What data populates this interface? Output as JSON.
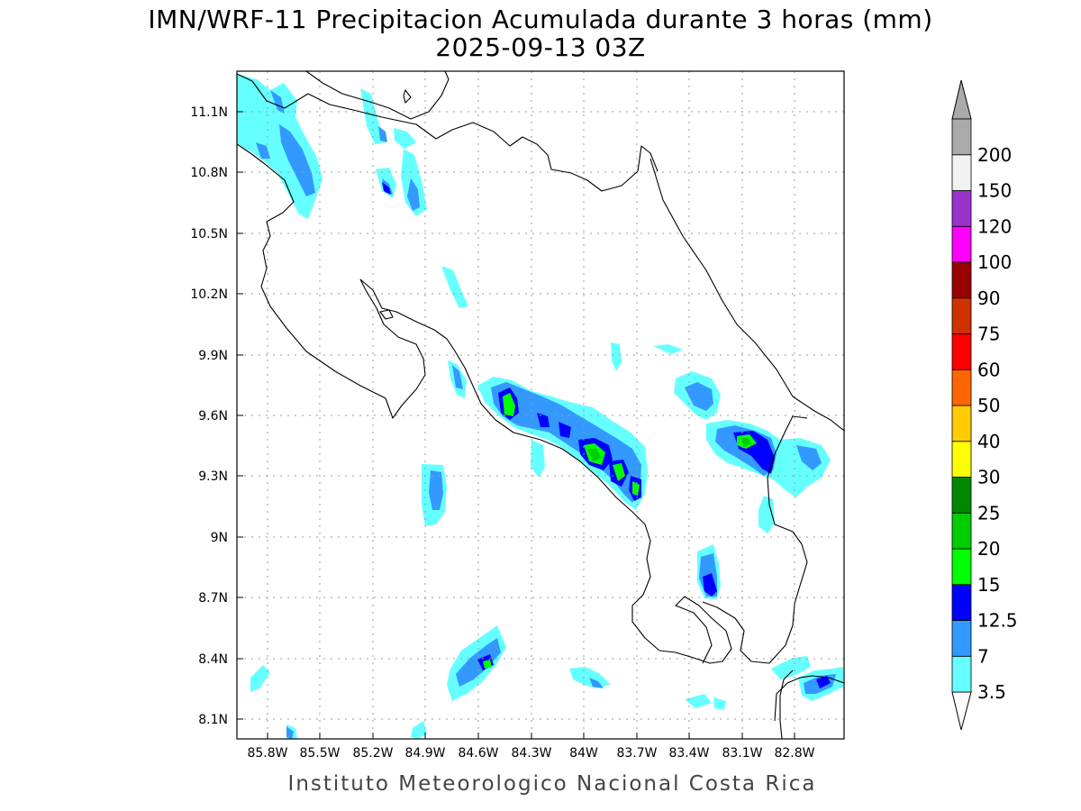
{
  "title": {
    "line1": "IMN/WRF-11 Precipitacion Acumulada durante 3 horas (mm)",
    "line2": "2025-09-13 03Z"
  },
  "footer": "Instituto Meteorologico Nacional Costa Rica",
  "axes": {
    "x_ticks": [
      "85.8W",
      "85.5W",
      "85.2W",
      "84.9W",
      "84.6W",
      "84.3W",
      "84W",
      "83.7W",
      "83.4W",
      "83.1W",
      "82.8W"
    ],
    "y_ticks": [
      "11.1N",
      "10.8N",
      "10.5N",
      "10.2N",
      "9.9N",
      "9.6N",
      "9.3N",
      "9N",
      "8.7N",
      "8.4N",
      "8.1N"
    ]
  },
  "legend": {
    "levels": [
      {
        "label": "3.5",
        "color": "#66ffff"
      },
      {
        "label": "7",
        "color": "#3399ff"
      },
      {
        "label": "12.5",
        "color": "#0000ff"
      },
      {
        "label": "15",
        "color": "#00ff00"
      },
      {
        "label": "20",
        "color": "#00cc00"
      },
      {
        "label": "25",
        "color": "#008800"
      },
      {
        "label": "30",
        "color": "#ffff00"
      },
      {
        "label": "40",
        "color": "#ffcc00"
      },
      {
        "label": "50",
        "color": "#ff6600"
      },
      {
        "label": "60",
        "color": "#ff0000"
      },
      {
        "label": "75",
        "color": "#cc3300"
      },
      {
        "label": "90",
        "color": "#990000"
      },
      {
        "label": "100",
        "color": "#ff00ff"
      },
      {
        "label": "120",
        "color": "#9933cc"
      },
      {
        "label": "150",
        "color": "#f2f2f2"
      },
      {
        "label": "200",
        "color": "#aaaaaa"
      }
    ]
  }
}
